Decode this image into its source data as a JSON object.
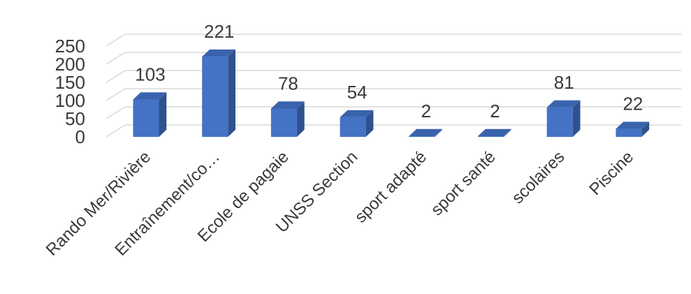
{
  "chart_data": {
    "type": "bar",
    "style": "3d-column",
    "categories": [
      "Rando Mer/Rivière",
      "Entraînement/co…",
      "Ecole de pagaie",
      "UNSS Section",
      "sport adapté",
      "sport santé",
      "scolaires",
      "Piscine"
    ],
    "values": [
      103,
      221,
      78,
      54,
      2,
      2,
      81,
      22
    ],
    "data_labels": [
      "103",
      "221",
      "78",
      "54",
      "2",
      "2",
      "81",
      "22"
    ],
    "yticks": [
      "0",
      "50",
      "100",
      "150",
      "200",
      "250"
    ],
    "ylim": [
      0,
      250
    ],
    "grid": true,
    "legend": false,
    "colors": {
      "bar_front": "#4472c4",
      "bar_side": "#2f528f",
      "bar_top": "#3a63ad",
      "grid": "#d9d9d9",
      "text": "#3a3a3a"
    }
  }
}
